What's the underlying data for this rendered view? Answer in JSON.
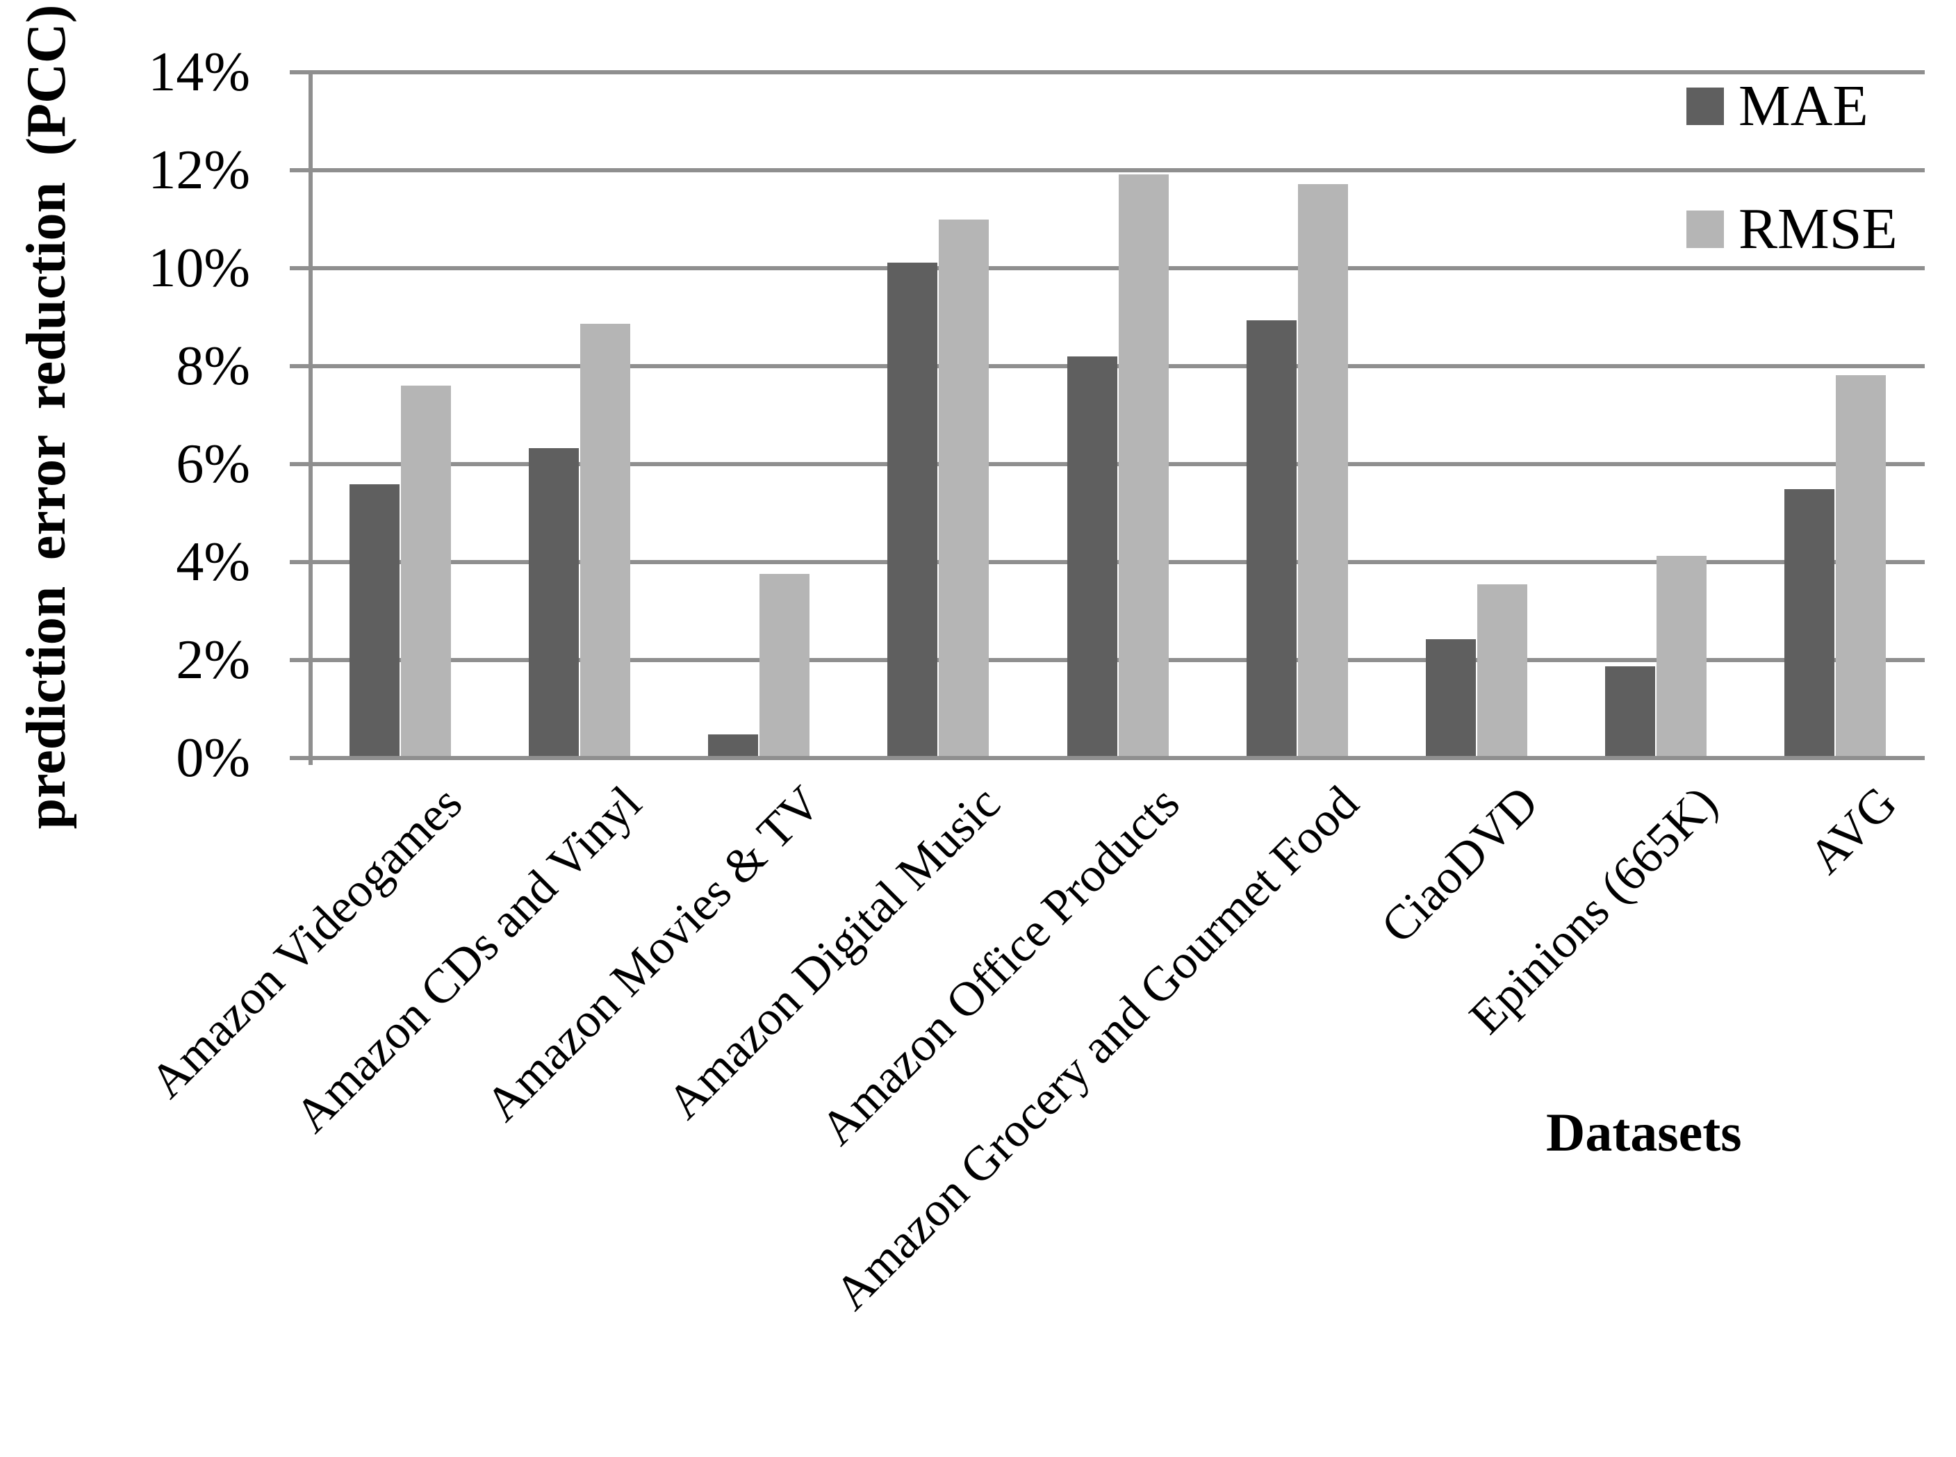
{
  "figure": {
    "background": "#ffffff",
    "text_color": "#000000"
  },
  "chart_data": {
    "type": "bar",
    "title": "",
    "xlabel": "Datasets",
    "ylabel": "prediction error reduction (PCC)",
    "categories": [
      "Amazon Videogames",
      "Amazon CDs and Vinyl",
      "Amazon Movies & TV",
      "Amazon Digital Music",
      "Amazon Office Products",
      "Amazon Grocery and Gourmet Food",
      "CiaoDVD",
      "Epinions (665K)",
      "AVG"
    ],
    "series": [
      {
        "name": "MAE",
        "color": "#5f5f5f",
        "values": [
          5.55,
          6.28,
          0.44,
          10.07,
          8.16,
          8.9,
          2.39,
          1.83,
          5.45
        ]
      },
      {
        "name": "RMSE",
        "color": "#b5b5b5",
        "values": [
          7.56,
          8.82,
          3.72,
          10.95,
          11.87,
          11.68,
          3.5,
          4.09,
          7.77
        ]
      }
    ],
    "ylim": [
      0,
      14
    ],
    "yticks": [
      {
        "value": 0,
        "label": "0%"
      },
      {
        "value": 2,
        "label": "2%"
      },
      {
        "value": 4,
        "label": "4%"
      },
      {
        "value": 6,
        "label": "6%"
      },
      {
        "value": 8,
        "label": "8%"
      },
      {
        "value": 10,
        "label": "10%"
      },
      {
        "value": 12,
        "label": "12%"
      },
      {
        "value": 14,
        "label": "14%"
      }
    ],
    "grid": "horizontal gridlines every 2%",
    "legend_position": "top-right",
    "gridline_color": "#8f8f8f",
    "axis_color": "#8f8f8f"
  }
}
